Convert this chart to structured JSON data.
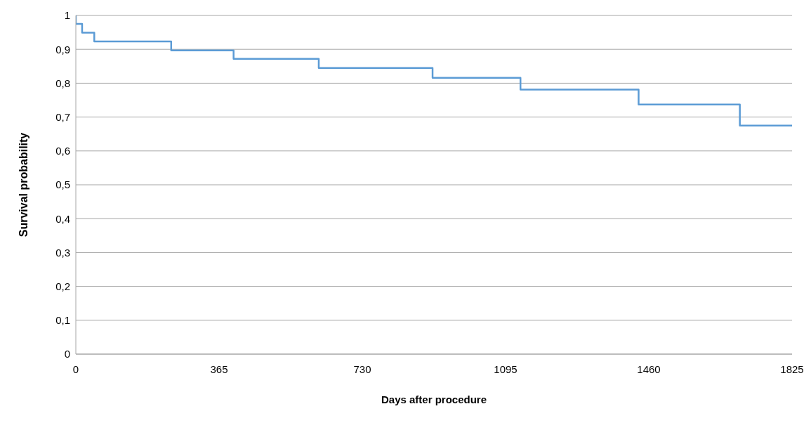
{
  "chart_data": {
    "type": "step",
    "xlabel": "Days after procedure",
    "ylabel": "Survival probability",
    "x": [
      0,
      0,
      16,
      47,
      243,
      402,
      619,
      909,
      1133,
      1434,
      1692,
      1825
    ],
    "series": [
      {
        "color": "#5b9bd5",
        "values": [
          1,
          0.975,
          0.949,
          0.923,
          0.897,
          0.872,
          0.845,
          0.816,
          0.781,
          0.737,
          0.675,
          0.675
        ]
      }
    ],
    "xlim": [
      0,
      1825
    ],
    "xticks": [
      0,
      365,
      730,
      1095,
      1460,
      1825
    ],
    "ylim": [
      0,
      1
    ],
    "yticks": [
      0,
      {
        "value": 0.1,
        "label": "0,1"
      },
      {
        "value": 0.2,
        "label": "0,2"
      },
      {
        "value": 0.3,
        "label": "0,3"
      },
      {
        "value": 0.4,
        "label": "0,4"
      },
      {
        "value": 0.5,
        "label": "0,5"
      },
      {
        "value": 0.6,
        "label": "0,6"
      },
      {
        "value": 0.7,
        "label": "0,7"
      },
      {
        "value": 0.8,
        "label": "0,8"
      },
      {
        "value": 0.9,
        "label": "0,9"
      },
      1
    ],
    "grid": "y",
    "legend": false,
    "marker": "none",
    "line_style": "solid"
  }
}
